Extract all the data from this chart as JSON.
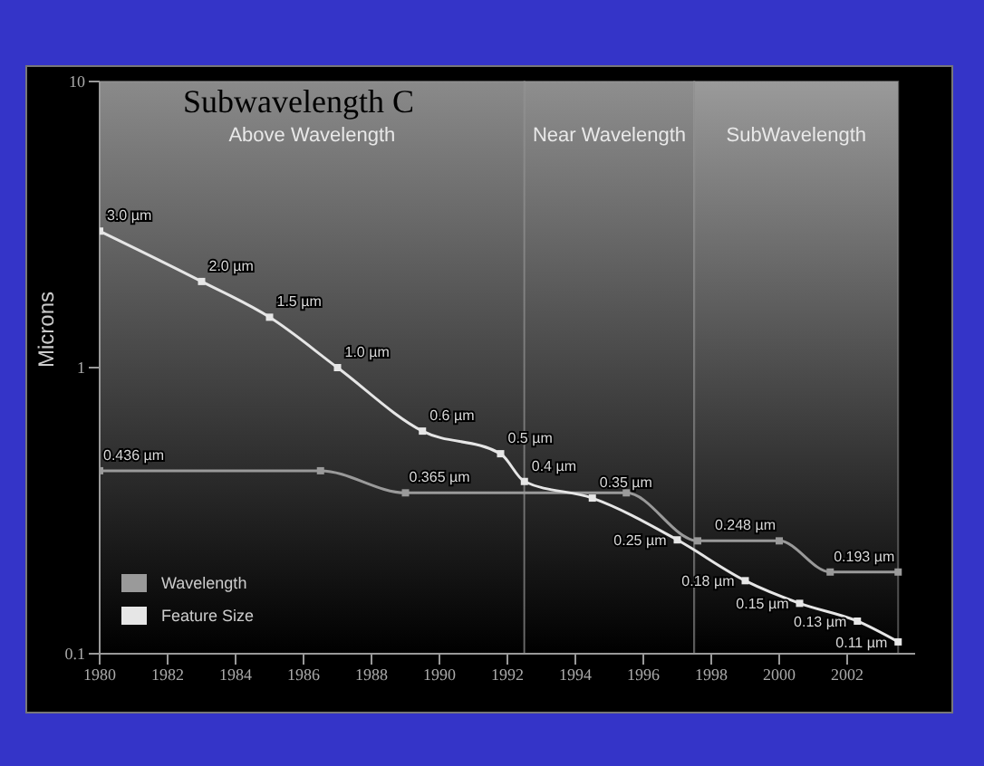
{
  "chart_data": {
    "type": "line",
    "title": "Subwavelength C",
    "ylabel": "Microns",
    "xlim": [
      1980,
      2004
    ],
    "xticks": [
      1980,
      1982,
      1984,
      1986,
      1988,
      1990,
      1992,
      1994,
      1996,
      1998,
      2000,
      2002
    ],
    "ylim": [
      0.1,
      10
    ],
    "yticks": [
      0.1,
      1,
      10
    ],
    "log": "y",
    "grid": false,
    "legend": "bottom left",
    "marker": "square",
    "line_style": "solid",
    "bands": [
      {
        "axis": "x",
        "from": 1980,
        "to": 1992.5,
        "label": "Above Wavelength",
        "color": "#8a8a8a"
      },
      {
        "axis": "x",
        "from": 1992.5,
        "to": 1997.5,
        "label": "Near Wavelength",
        "color": "#8e8e8e"
      },
      {
        "axis": "x",
        "from": 1997.5,
        "to": 2003.5,
        "label": "SubWavelength",
        "color": "#9a9a9a"
      }
    ],
    "series": [
      {
        "name": "Wavelength",
        "color": "#9a9a9a",
        "x": [
          1980,
          1986.5,
          1989,
          1995.5,
          1997.6,
          2000,
          2001.5,
          2003.5
        ],
        "values": [
          0.436,
          0.436,
          0.365,
          0.365,
          0.248,
          0.248,
          0.193,
          0.193
        ],
        "value_labels": [
          "0.436 µm",
          null,
          "0.365 µm",
          null,
          null,
          "0.248 µm",
          null,
          "0.193 µm"
        ]
      },
      {
        "name": "Feature Size",
        "color": "#e6e6e6",
        "x": [
          1980,
          1983,
          1985,
          1987,
          1989.5,
          1991.8,
          1992.5,
          1994.5,
          1997,
          1999,
          2000.6,
          2002.3,
          2003.5
        ],
        "values": [
          3.0,
          2.0,
          1.5,
          1.0,
          0.6,
          0.5,
          0.4,
          0.35,
          0.25,
          0.18,
          0.15,
          0.13,
          0.11
        ],
        "value_labels": [
          "3.0 µm",
          "2.0 µm",
          "1.5 µm",
          "1.0 µm",
          "0.6 µm",
          "0.5 µm",
          "0.4 µm",
          "0.35 µm",
          "0.25 µm",
          "0.18 µm",
          "0.15 µm",
          "0.13 µm",
          "0.11 µm"
        ]
      }
    ]
  }
}
